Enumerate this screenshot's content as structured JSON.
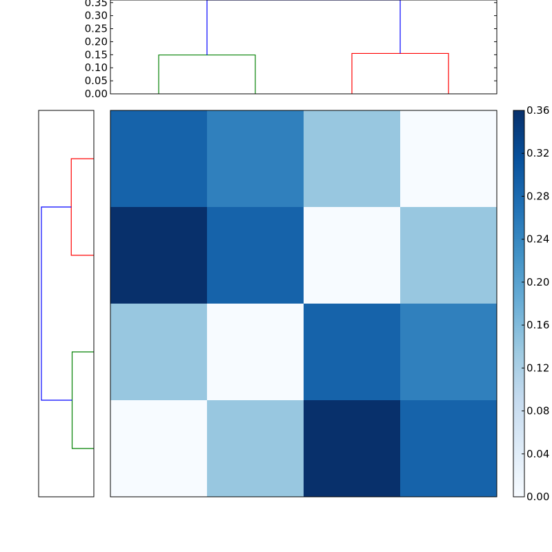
{
  "chart_data": [
    {
      "type": "dendrogram",
      "position": "top",
      "ylim": [
        0,
        0.36
      ],
      "ytick_labels": [
        "0.00",
        "0.05",
        "0.10",
        "0.15",
        "0.20",
        "0.25",
        "0.30",
        "0.35"
      ],
      "yticks": [
        0,
        0.05,
        0.1,
        0.15,
        0.2,
        0.25,
        0.3,
        0.35
      ],
      "leaf_count": 4,
      "links": [
        {
          "left": 0,
          "right": 1,
          "height": 0.149,
          "color": "#008000"
        },
        {
          "left": 2,
          "right": 3,
          "height": 0.155,
          "color": "#ff0000"
        },
        {
          "left": 0.5,
          "right": 2.5,
          "left_height": 0.149,
          "right_height": 0.155,
          "height": 0.36,
          "color": "#0000ff"
        }
      ]
    },
    {
      "type": "dendrogram",
      "position": "left",
      "leaf_count": 4,
      "max_height": 0.36,
      "links": [
        {
          "left": 0,
          "right": 1,
          "height": 0.155,
          "color": "#ff0000"
        },
        {
          "left": 2,
          "right": 3,
          "height": 0.149,
          "color": "#008000"
        },
        {
          "left": 0.5,
          "right": 2.5,
          "left_height": 0.155,
          "right_height": 0.149,
          "height": 0.36,
          "color": "#0000ff"
        }
      ]
    },
    {
      "type": "heatmap",
      "colormap": "Blues",
      "vmin": 0,
      "vmax": 0.36,
      "values": [
        [
          0.29,
          0.25,
          0.14,
          0.0
        ],
        [
          0.36,
          0.29,
          0.0,
          0.14
        ],
        [
          0.14,
          0.0,
          0.29,
          0.25
        ],
        [
          0.0,
          0.14,
          0.36,
          0.29
        ]
      ],
      "colorbar_ticks": [
        0,
        0.04,
        0.08,
        0.12,
        0.16,
        0.2,
        0.24,
        0.28,
        0.32,
        0.36
      ],
      "colorbar_tick_labels": [
        "0.00",
        "0.04",
        "0.08",
        "0.12",
        "0.16",
        "0.20",
        "0.24",
        "0.28",
        "0.32",
        "0.36"
      ]
    }
  ]
}
